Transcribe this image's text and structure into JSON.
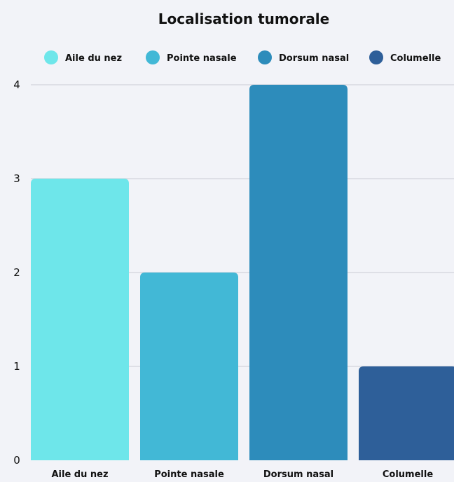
{
  "chart_data": {
    "type": "bar",
    "title": "Localisation tumorale",
    "xlabel": "",
    "ylabel": "",
    "categories": [
      "Aile du nez",
      "Pointe nasale",
      "Dorsum nasal",
      "Columelle"
    ],
    "values": [
      3,
      2,
      4,
      1
    ],
    "colors": [
      "#6ee6ea",
      "#42b8d6",
      "#2d8cbb",
      "#2e5f99"
    ],
    "yticks": [
      "0",
      "1",
      "2",
      "3",
      "4"
    ],
    "ylim": [
      0,
      4
    ],
    "grid": true,
    "legend": {
      "position": "top",
      "entries": [
        "Aile du nez",
        "Pointe nasale",
        "Dorsum nasal",
        "Columelle"
      ]
    }
  }
}
